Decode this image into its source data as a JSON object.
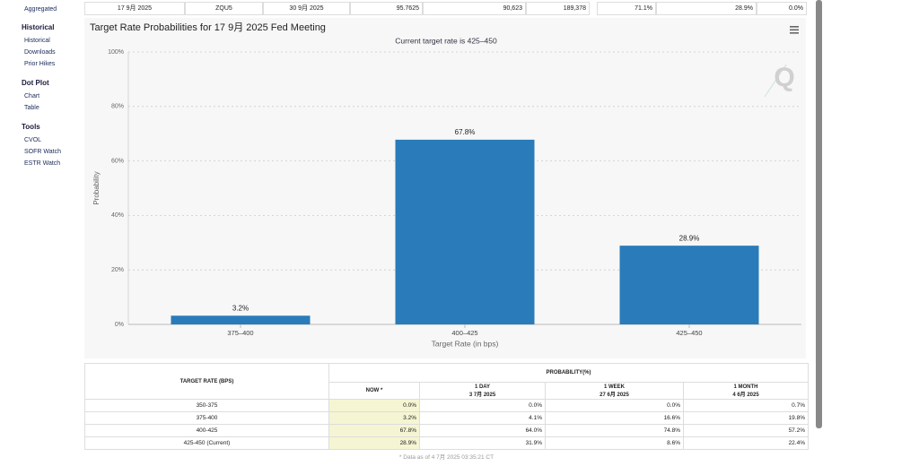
{
  "sidebar": {
    "top": [
      "Aggregated"
    ],
    "sections": [
      {
        "heading": "Historical",
        "items": [
          "Historical",
          "Downloads",
          "Prior Hikes"
        ]
      },
      {
        "heading": "Dot Plot",
        "items": [
          "Chart",
          "Table"
        ]
      },
      {
        "heading": "Tools",
        "items": [
          "CVOL",
          "SOFR Watch",
          "ESTR Watch"
        ]
      }
    ]
  },
  "futures_row": [
    "17 9月 2025",
    "ZQU5",
    "30 9月 2025",
    "95.7625",
    "90,623",
    "189,378",
    "71.1%",
    "28.9%",
    "0.0%"
  ],
  "chart_data": {
    "type": "bar",
    "title": "Target Rate Probabilities for 17 9月 2025 Fed Meeting",
    "subtitle": "Current target rate is 425–450",
    "x_label": "Target Rate (in bps)",
    "y_label": "Probability",
    "categories": [
      "375–400",
      "400–425",
      "425–450"
    ],
    "values": [
      3.2,
      67.8,
      28.9
    ],
    "value_labels": [
      "3.2%",
      "67.8%",
      "28.9%"
    ],
    "color": "#2a7bba",
    "ylim": [
      0,
      100
    ],
    "yticks": [
      {
        "value": 0,
        "label": "0%"
      },
      {
        "value": 20,
        "label": "20%"
      },
      {
        "value": 40,
        "label": "40%"
      },
      {
        "value": 60,
        "label": "60%"
      },
      {
        "value": 80,
        "label": "80%"
      },
      {
        "value": 100,
        "label": "100%"
      }
    ],
    "grid": true
  },
  "table": {
    "header_rate": "TARGET RATE (BPS)",
    "header_prob": "PROBABILITY(%)",
    "columns": [
      [
        "NOW *"
      ],
      [
        "1 DAY",
        "3 7月 2025"
      ],
      [
        "1 WEEK",
        "27 6月 2025"
      ],
      [
        "1 MONTH",
        "4 6月 2025"
      ]
    ],
    "rows": [
      [
        "350-375",
        "0.0%",
        "0.0%",
        "0.0%",
        "0.7%"
      ],
      [
        "375-400",
        "3.2%",
        "4.1%",
        "16.6%",
        "19.8%"
      ],
      [
        "400-425",
        "67.8%",
        "64.0%",
        "74.8%",
        "57.2%"
      ],
      [
        "425-450 (Current)",
        "28.9%",
        "31.9%",
        "8.6%",
        "22.4%"
      ]
    ],
    "footnote": "* Data as of 4 7月 2025 03:35:21 CT"
  }
}
